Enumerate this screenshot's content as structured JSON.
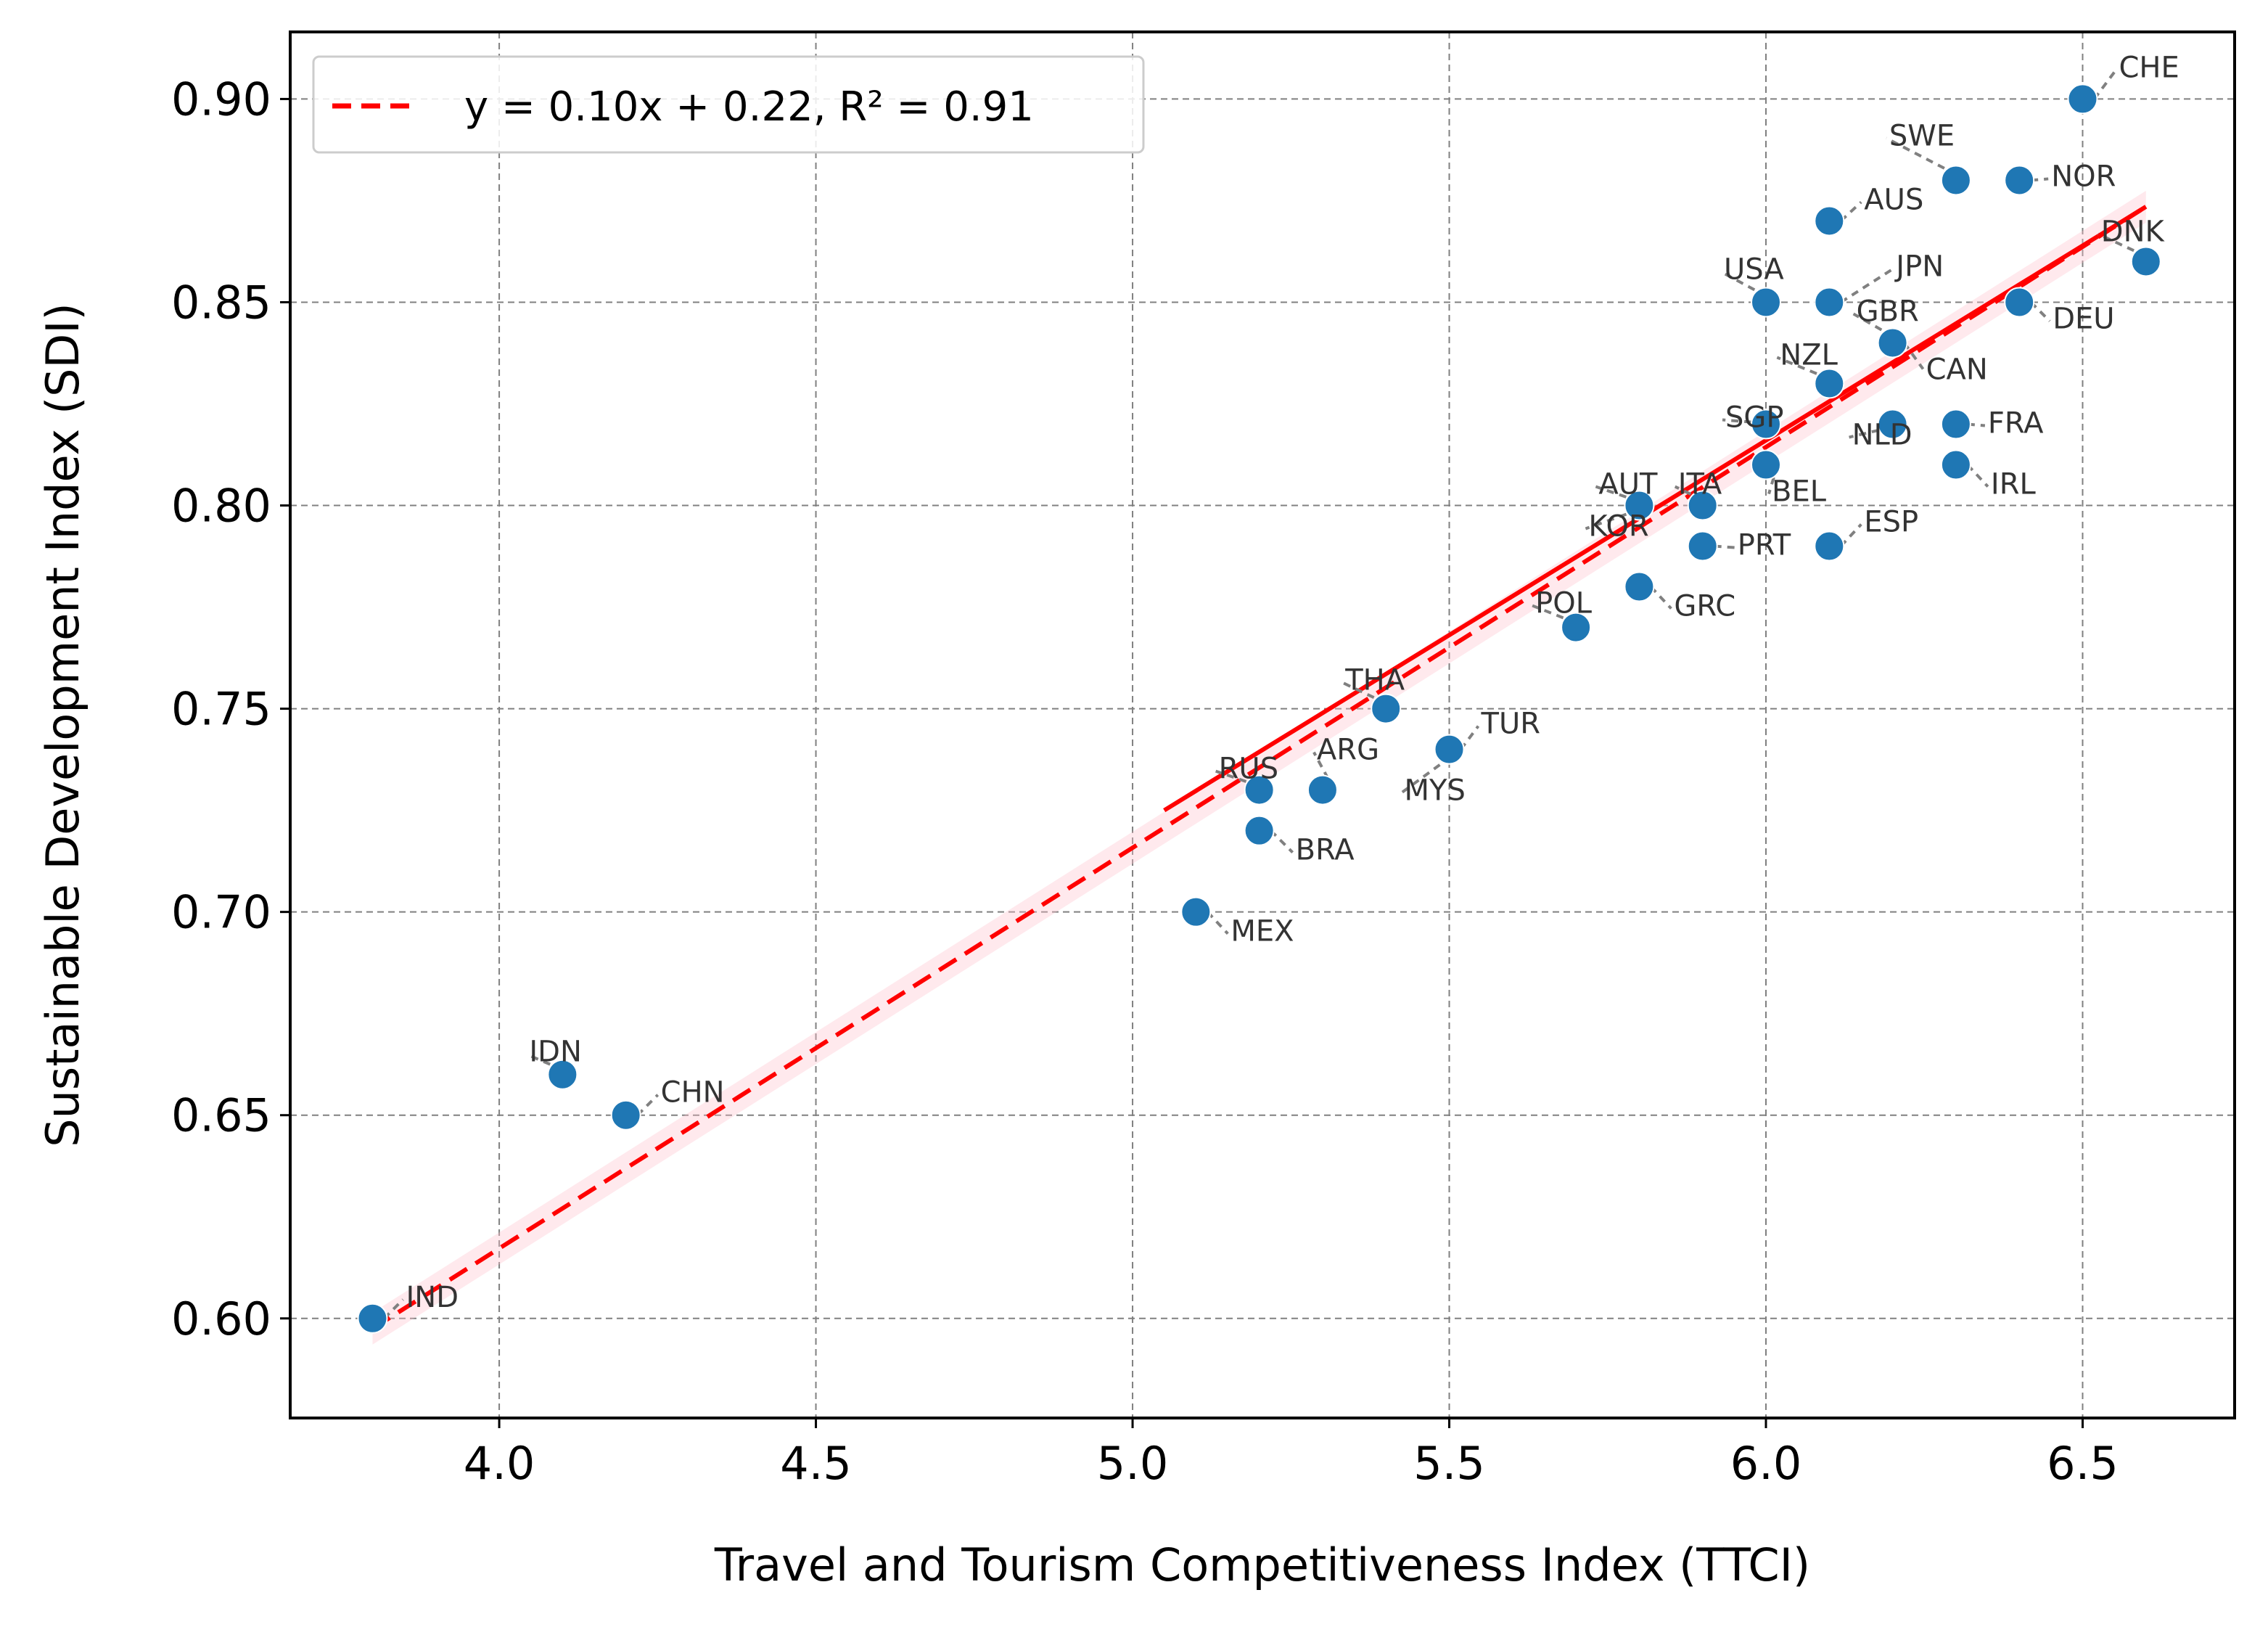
{
  "chart_data": {
    "type": "scatter",
    "title": "",
    "xlabel": "Travel and Tourism Competitiveness Index (TTCI)",
    "ylabel": "Sustainable Development Index (SDI)",
    "xlim": [
      3.67,
      6.74
    ],
    "ylim": [
      0.5755,
      0.9165
    ],
    "xticks": [
      4.0,
      4.5,
      5.0,
      5.5,
      6.0,
      6.5
    ],
    "xtick_labels": [
      "4.0",
      "4.5",
      "5.0",
      "5.5",
      "6.0",
      "6.5"
    ],
    "yticks": [
      0.6,
      0.65,
      0.7,
      0.75,
      0.8,
      0.85,
      0.9
    ],
    "ytick_labels": [
      "0.60",
      "0.65",
      "0.70",
      "0.75",
      "0.80",
      "0.85",
      "0.90"
    ],
    "grid": true,
    "legend": {
      "position": "top-left",
      "label": "y = 0.10x + 0.22, R² = 0.91"
    },
    "fit": {
      "slope": 0.1,
      "intercept": 0.22,
      "r2": 0.91,
      "x_range": [
        3.8,
        6.6
      ],
      "y_range": [
        0.5975,
        0.8735
      ],
      "color": "#ff0000",
      "band_color": "#ffc0cb"
    },
    "point_color": "#1f77b4",
    "points": [
      {
        "label": "CHE",
        "x": 6.5,
        "y": 0.9
      },
      {
        "label": "SWE",
        "x": 6.3,
        "y": 0.88
      },
      {
        "label": "NOR",
        "x": 6.4,
        "y": 0.88
      },
      {
        "label": "AUS",
        "x": 6.1,
        "y": 0.87
      },
      {
        "label": "DNK",
        "x": 6.6,
        "y": 0.86
      },
      {
        "label": "USA",
        "x": 6.0,
        "y": 0.85
      },
      {
        "label": "JPN",
        "x": 6.1,
        "y": 0.85
      },
      {
        "label": "DEU",
        "x": 6.4,
        "y": 0.85
      },
      {
        "label": "GBR",
        "x": 6.2,
        "y": 0.84
      },
      {
        "label": "NZL",
        "x": 6.1,
        "y": 0.83
      },
      {
        "label": "CAN",
        "x": 6.1,
        "y": 0.83
      },
      {
        "label": "SGP",
        "x": 6.0,
        "y": 0.82
      },
      {
        "label": "NLD",
        "x": 6.2,
        "y": 0.82
      },
      {
        "label": "FRA",
        "x": 6.3,
        "y": 0.82
      },
      {
        "label": "BEL",
        "x": 6.0,
        "y": 0.81
      },
      {
        "label": "IRL",
        "x": 6.3,
        "y": 0.81
      },
      {
        "label": "AUT",
        "x": 5.8,
        "y": 0.8
      },
      {
        "label": "ITA",
        "x": 5.9,
        "y": 0.8
      },
      {
        "label": "KOR",
        "x": 5.8,
        "y": 0.8
      },
      {
        "label": "PRT",
        "x": 5.9,
        "y": 0.79
      },
      {
        "label": "ESP",
        "x": 6.1,
        "y": 0.79
      },
      {
        "label": "GRC",
        "x": 5.8,
        "y": 0.78
      },
      {
        "label": "POL",
        "x": 5.7,
        "y": 0.77
      },
      {
        "label": "THA",
        "x": 5.4,
        "y": 0.75
      },
      {
        "label": "TUR",
        "x": 5.5,
        "y": 0.74
      },
      {
        "label": "MYS",
        "x": 5.5,
        "y": 0.74
      },
      {
        "label": "RUS",
        "x": 5.2,
        "y": 0.73
      },
      {
        "label": "ARG",
        "x": 5.3,
        "y": 0.73
      },
      {
        "label": "BRA",
        "x": 5.2,
        "y": 0.72
      },
      {
        "label": "MEX",
        "x": 5.1,
        "y": 0.7
      },
      {
        "label": "IDN",
        "x": 4.1,
        "y": 0.66
      },
      {
        "label": "CHN",
        "x": 4.2,
        "y": 0.65
      },
      {
        "label": "IND",
        "x": 3.8,
        "y": 0.6
      }
    ]
  }
}
